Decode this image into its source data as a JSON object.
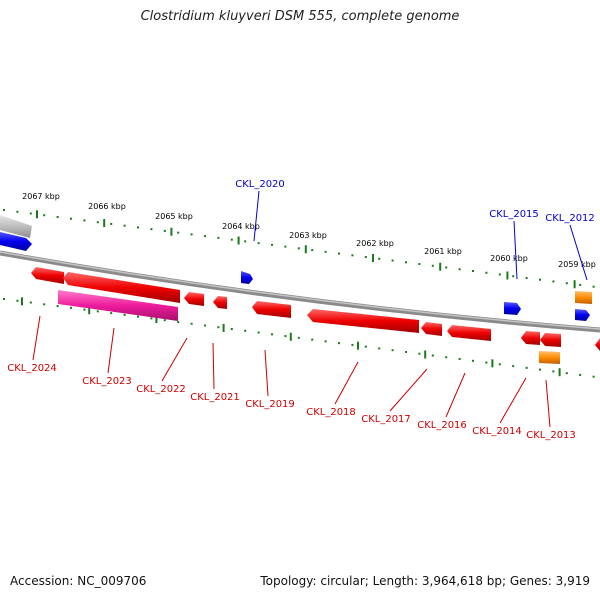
{
  "title": "Clostridium kluyveri DSM 555, complete genome",
  "accession_label": "Accession: NC_009706",
  "summary_label": "Topology: circular; Length: 3,964,618 bp; Genes: 3,919",
  "colors": {
    "backbone": "#8a8a8a",
    "tick": "#1a7a1a",
    "gene_forward_label": "#0000cc",
    "gene_reverse_label": "#cc0000",
    "gene_red": "#ee0000",
    "gene_blue": "#0000ee",
    "gene_magenta": "#ee1c9c",
    "gene_orange": "#ff8c00",
    "gene_gray": "#bdbdbd"
  },
  "scale_labels": [
    "2067 kbp",
    "2066 kbp",
    "2065 kbp",
    "2064 kbp",
    "2063 kbp",
    "2062 kbp",
    "2061 kbp",
    "2060 kbp",
    "2059 kbp"
  ],
  "forward_gene_labels": [
    "CKL_2020",
    "CKL_2015",
    "CKL_2012"
  ],
  "reverse_gene_labels": [
    "CKL_2024",
    "CKL_2023",
    "CKL_2022",
    "CKL_2021",
    "CKL_2019",
    "CKL_2018",
    "CKL_2017",
    "CKL_2016",
    "CKL_2014",
    "CKL_2013"
  ]
}
